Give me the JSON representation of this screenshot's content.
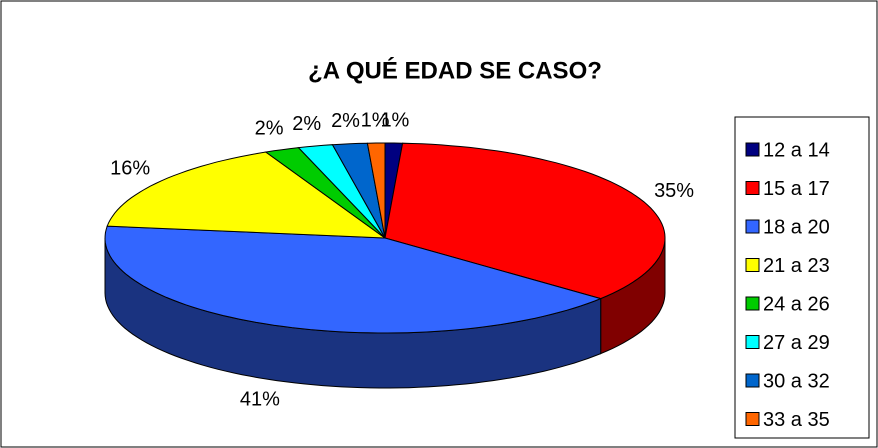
{
  "chart_data": {
    "type": "pie3d",
    "title": "¿A QUÉ EDAD SE CASO?",
    "categories": [
      "12 a 14",
      "15 a 17",
      "18 a 20",
      "21 a 23",
      "24 a 26",
      "27 a 29",
      "30 a 32",
      "33 a 35"
    ],
    "values": [
      1,
      35,
      41,
      16,
      2,
      2,
      2,
      1
    ],
    "value_labels": [
      "1%",
      "35%",
      "41%",
      "16%",
      "2%",
      "2%",
      "2%",
      "1%"
    ],
    "colors": [
      "#000080",
      "#ff0000",
      "#3366ff",
      "#ffff00",
      "#00cc00",
      "#00ffff",
      "#0066cc",
      "#ff6600"
    ],
    "legend": "right"
  }
}
